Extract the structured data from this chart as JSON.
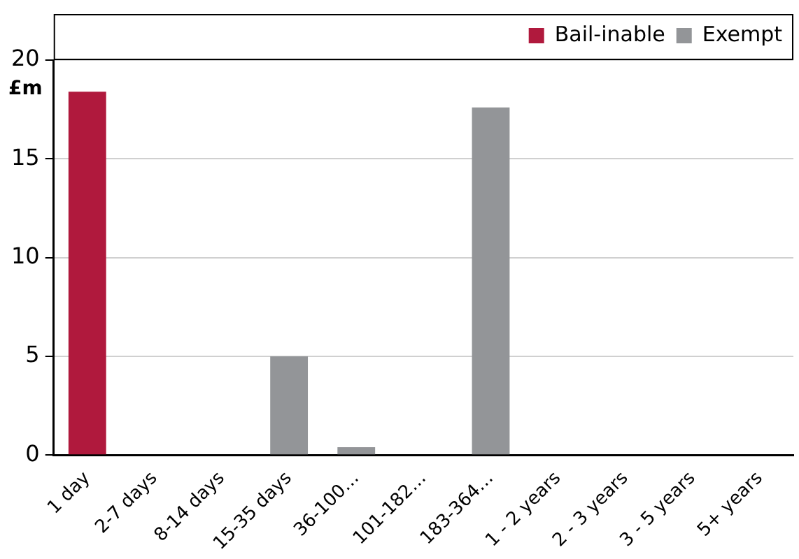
{
  "chart_data": {
    "type": "bar",
    "ylabel": "£m",
    "stacked": true,
    "categories": [
      "1 day",
      "2-7 days",
      "8-14 days",
      "15-35 days",
      "36-100…",
      "101-182…",
      "183-364…",
      "1 - 2 years",
      "2 - 3 years",
      "3 - 5 years",
      "5+ years"
    ],
    "series": [
      {
        "name": "Bail-inable",
        "color": "#b0193d",
        "values": [
          18.4,
          0,
          0,
          0,
          0,
          0,
          0,
          0,
          0,
          0,
          0
        ]
      },
      {
        "name": "Exempt",
        "color": "#939598",
        "values": [
          0,
          0,
          0,
          5.0,
          0.4,
          0,
          17.6,
          0,
          0,
          0,
          0
        ]
      }
    ],
    "ylim": [
      0,
      20
    ],
    "yticks": [
      0,
      5,
      10,
      15,
      20
    ],
    "grid": "y",
    "legend": "top right"
  }
}
